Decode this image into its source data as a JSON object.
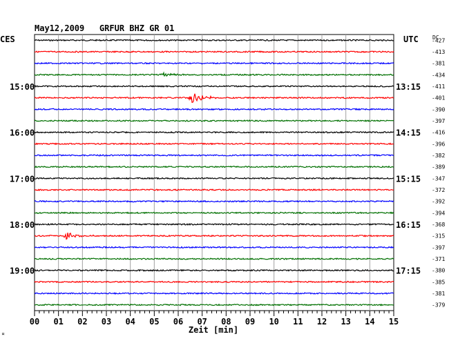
{
  "header": {
    "title": "May12,2009   GRFUR BHZ GR 01",
    "left_zone": "CES",
    "right_zone": "UTC",
    "dc_label": "DC",
    "footnote": "¤"
  },
  "chart_data": {
    "type": "line",
    "title": "May12,2009   GRFUR BHZ GR 01",
    "xlabel": "Zeit [min]",
    "ylabel": "",
    "xlim": [
      0,
      15
    ],
    "x_ticks": [
      "00",
      "01",
      "02",
      "03",
      "04",
      "05",
      "06",
      "07",
      "08",
      "09",
      "10",
      "11",
      "12",
      "13",
      "14",
      "15"
    ],
    "trace_count": 24,
    "trace_interval_min": 15,
    "trace_colors": [
      "#000000",
      "#ff0000",
      "#0000ff",
      "#007000"
    ],
    "left_time_labels": [
      {
        "trace": 4,
        "label": "15:00"
      },
      {
        "trace": 8,
        "label": "16:00"
      },
      {
        "trace": 12,
        "label": "17:00"
      },
      {
        "trace": 16,
        "label": "18:00"
      },
      {
        "trace": 20,
        "label": "19:00"
      }
    ],
    "right_time_labels": [
      {
        "trace": 4,
        "label": "13:15"
      },
      {
        "trace": 8,
        "label": "14:15"
      },
      {
        "trace": 12,
        "label": "15:15"
      },
      {
        "trace": 16,
        "label": "16:15"
      },
      {
        "trace": 20,
        "label": "17:15"
      }
    ],
    "dc_offsets": [
      "-427",
      "-413",
      "-381",
      "-434",
      "-411",
      "-401",
      "-390",
      "-397",
      "-416",
      "-396",
      "-382",
      "-389",
      "-347",
      "-372",
      "-392",
      "-394",
      "-368",
      "-315",
      "-397",
      "-371",
      "-380",
      "-385",
      "-381",
      "-379"
    ],
    "events": [
      {
        "trace": 3,
        "minute": 5.4,
        "amplitude": 3
      },
      {
        "trace": 5,
        "minute": 6.6,
        "amplitude": 9
      },
      {
        "trace": 17,
        "minute": 1.3,
        "amplitude": 6
      }
    ],
    "grid": true
  }
}
